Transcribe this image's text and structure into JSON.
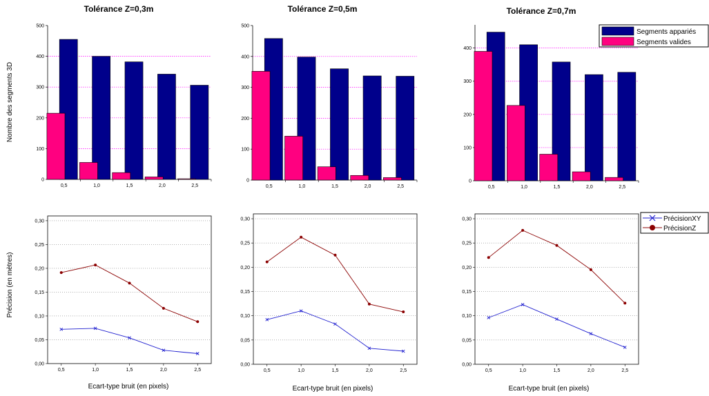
{
  "shared": {
    "bar_ylabel": "Nombre des segments 3D",
    "line_ylabel": "Précision (en mètres)",
    "line_xlabel": "Ecart-type bruit (en pixels)",
    "x_ticks": [
      "0,5",
      "1,0",
      "1,5",
      "2,0",
      "2,5"
    ],
    "bar_colors": {
      "apparies": "#00008b",
      "valides": "#ff0080"
    },
    "line_colors": {
      "xy": "#1f1fcf",
      "z": "#8b0000"
    },
    "grid_color": "#ff00ff"
  },
  "chart_data": [
    {
      "type": "bar",
      "title": "Tolérance Z=0,3m",
      "categories": [
        "0,5",
        "1,0",
        "1,5",
        "2,0",
        "2,5"
      ],
      "ylim": [
        0,
        500
      ],
      "yticks": [
        0,
        100,
        200,
        300,
        400,
        500
      ],
      "ylabel": "Nombre des segments 3D",
      "series": [
        {
          "values": [
            455,
            400,
            382,
            342,
            306
          ]
        },
        {
          "values": [
            215,
            55,
            22,
            8,
            2
          ]
        }
      ],
      "grid": true
    },
    {
      "type": "bar",
      "title": "Tolérance Z=0,5m",
      "categories": [
        "0,5",
        "1,0",
        "1,5",
        "2,0",
        "2,5"
      ],
      "ylim": [
        0,
        500
      ],
      "yticks": [
        0,
        100,
        200,
        300,
        400,
        500
      ],
      "series": [
        {
          "values": [
            458,
            398,
            360,
            337,
            336
          ]
        },
        {
          "values": [
            352,
            142,
            43,
            15,
            8
          ]
        }
      ],
      "grid": true
    },
    {
      "type": "bar",
      "title": "Tolérance Z=0,7m",
      "categories": [
        "0,5",
        "1,0",
        "1,5",
        "2,0",
        "2,5"
      ],
      "ylim": [
        0,
        470
      ],
      "yticks": [
        0,
        100,
        200,
        300,
        400
      ],
      "legend": "top-right",
      "series": [
        {
          "name": "Segments appariés",
          "values": [
            448,
            410,
            358,
            320,
            327
          ]
        },
        {
          "name": "Segments valides",
          "values": [
            390,
            227,
            80,
            27,
            10
          ]
        }
      ],
      "grid": true
    },
    {
      "type": "line",
      "x": [
        0.5,
        1.0,
        1.5,
        2.0,
        2.5
      ],
      "xticks": [
        "0,5",
        "1,0",
        "1,5",
        "2,0",
        "2,5"
      ],
      "xlim": [
        0.3,
        2.7
      ],
      "ylim": [
        0,
        0.31
      ],
      "yticks": [
        "0,00",
        "0,05",
        "0,10",
        "0,15",
        "0,20",
        "0,25",
        "0,30"
      ],
      "xlabel": "Ecart-type bruit (en pixels)",
      "ylabel": "Précision (en mètres)",
      "series": [
        {
          "values": [
            0.072,
            0.074,
            0.054,
            0.028,
            0.021
          ]
        },
        {
          "values": [
            0.191,
            0.207,
            0.169,
            0.116,
            0.088
          ]
        }
      ],
      "grid": true
    },
    {
      "type": "line",
      "x": [
        0.5,
        1.0,
        1.5,
        2.0,
        2.5
      ],
      "xticks": [
        "0,5",
        "1,0",
        "1,5",
        "2,0",
        "2,5"
      ],
      "xlim": [
        0.3,
        2.7
      ],
      "ylim": [
        0,
        0.31
      ],
      "yticks": [
        "0,00",
        "0,05",
        "0,10",
        "0,15",
        "0,20",
        "0,25",
        "0,30"
      ],
      "xlabel": "Ecart-type bruit (en pixels)",
      "series": [
        {
          "values": [
            0.092,
            0.11,
            0.083,
            0.033,
            0.027
          ]
        },
        {
          "values": [
            0.211,
            0.262,
            0.225,
            0.124,
            0.108
          ]
        }
      ],
      "grid": true
    },
    {
      "type": "line",
      "x": [
        0.5,
        1.0,
        1.5,
        2.0,
        2.5
      ],
      "xticks": [
        "0,5",
        "1,0",
        "1,5",
        "2,0",
        "2,5"
      ],
      "xlim": [
        0.3,
        2.7
      ],
      "ylim": [
        0,
        0.31
      ],
      "yticks": [
        "0,00",
        "0,05",
        "0,10",
        "0,15",
        "0,20",
        "0,25",
        "0,30"
      ],
      "xlabel": "Ecart-type bruit (en pixels)",
      "legend": "top-right",
      "series": [
        {
          "name": "PrécisionXY",
          "values": [
            0.096,
            0.123,
            0.093,
            0.063,
            0.035
          ]
        },
        {
          "name": "PrécisionZ",
          "values": [
            0.22,
            0.276,
            0.245,
            0.195,
            0.126
          ]
        }
      ],
      "grid": true
    }
  ]
}
